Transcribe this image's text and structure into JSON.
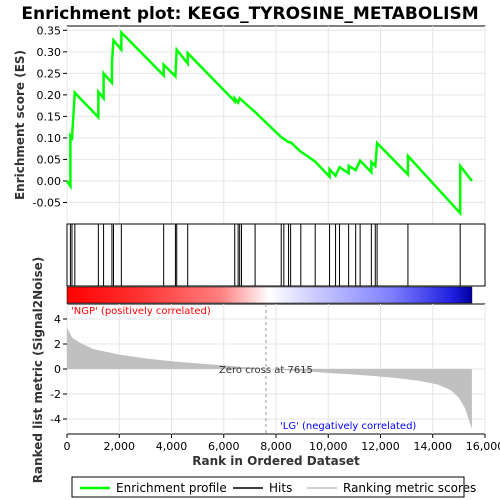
{
  "chart_data": {
    "type": "line",
    "title": "Enrichment plot: KEGG_TYROSINE_METABOLISM",
    "xlabel": "Rank in Ordered Dataset",
    "ylabel_top": "Enrichment score (ES)",
    "ylabel_bottom": "Ranked list metric (Signal2Noise)",
    "xlim": [
      0,
      16000
    ],
    "ylim_top": [
      -0.1,
      0.36
    ],
    "ylim_bottom": [
      -5.2,
      5.2
    ],
    "x_ticks": [
      0,
      2000,
      4000,
      6000,
      8000,
      10000,
      12000,
      14000,
      16000
    ],
    "x_tick_labels": [
      "0",
      "2,000",
      "4,000",
      "6,000",
      "8,000",
      "10,000",
      "12,000",
      "14,000",
      "16,000"
    ],
    "y_ticks_top": [
      -0.05,
      0.0,
      0.05,
      0.1,
      0.15,
      0.2,
      0.25,
      0.3,
      0.35
    ],
    "y_tick_labels_top": [
      "-0.05",
      "0.00",
      "0.05",
      "0.10",
      "0.15",
      "0.20",
      "0.25",
      "0.30",
      "0.35"
    ],
    "y_ticks_bottom": [
      -4,
      -2,
      0,
      2,
      4
    ],
    "y_tick_labels_bottom": [
      "-4",
      "-2",
      "0",
      "2",
      "4"
    ],
    "grid": true,
    "n_genes": 15500,
    "hits": [
      130,
      190,
      300,
      1200,
      1400,
      1720,
      1780,
      2080,
      3700,
      4150,
      4200,
      4620,
      6420,
      6550,
      6610,
      6680,
      7200,
      8200,
      8300,
      8480,
      8560,
      8950,
      9500,
      10050,
      10280,
      10430,
      10780,
      11050,
      11220,
      11650,
      11800,
      11870,
      13050,
      15050
    ],
    "es_points": [
      [
        0,
        0.0
      ],
      [
        130,
        -0.012
      ],
      [
        131,
        0.105
      ],
      [
        190,
        0.1
      ],
      [
        300,
        0.205
      ],
      [
        1200,
        0.148
      ],
      [
        1201,
        0.207
      ],
      [
        1400,
        0.192
      ],
      [
        1401,
        0.25
      ],
      [
        1720,
        0.228
      ],
      [
        1721,
        0.278
      ],
      [
        1780,
        0.327
      ],
      [
        2080,
        0.305
      ],
      [
        2081,
        0.345
      ],
      [
        3700,
        0.245
      ],
      [
        3701,
        0.27
      ],
      [
        4150,
        0.243
      ],
      [
        4200,
        0.305
      ],
      [
        4620,
        0.273
      ],
      [
        4621,
        0.297
      ],
      [
        6420,
        0.185
      ],
      [
        6421,
        0.192
      ],
      [
        6550,
        0.182
      ],
      [
        6610,
        0.192
      ],
      [
        6680,
        0.188
      ],
      [
        7200,
        0.16
      ],
      [
        8200,
        0.102
      ],
      [
        8300,
        0.098
      ],
      [
        8480,
        0.09
      ],
      [
        8560,
        0.09
      ],
      [
        8950,
        0.068
      ],
      [
        9500,
        0.045
      ],
      [
        10050,
        0.01
      ],
      [
        10051,
        0.027
      ],
      [
        10280,
        0.012
      ],
      [
        10430,
        0.032
      ],
      [
        10780,
        0.018
      ],
      [
        10781,
        0.035
      ],
      [
        11050,
        0.025
      ],
      [
        11220,
        0.047
      ],
      [
        11650,
        0.02
      ],
      [
        11651,
        0.044
      ],
      [
        11800,
        0.035
      ],
      [
        11870,
        0.088
      ],
      [
        13050,
        0.015
      ],
      [
        13051,
        0.058
      ],
      [
        15050,
        -0.075
      ],
      [
        15051,
        0.035
      ],
      [
        15500,
        0.0
      ]
    ],
    "metric_points": [
      [
        0,
        3.3
      ],
      [
        200,
        2.5
      ],
      [
        500,
        2.1
      ],
      [
        1000,
        1.6
      ],
      [
        2000,
        1.15
      ],
      [
        3000,
        0.85
      ],
      [
        4000,
        0.62
      ],
      [
        5000,
        0.45
      ],
      [
        6000,
        0.28
      ],
      [
        7000,
        0.12
      ],
      [
        7615,
        0.0
      ],
      [
        8500,
        -0.12
      ],
      [
        9500,
        -0.25
      ],
      [
        10500,
        -0.38
      ],
      [
        11500,
        -0.52
      ],
      [
        12500,
        -0.7
      ],
      [
        13500,
        -0.95
      ],
      [
        14200,
        -1.25
      ],
      [
        14700,
        -1.7
      ],
      [
        15000,
        -2.3
      ],
      [
        15250,
        -3.2
      ],
      [
        15400,
        -4.2
      ],
      [
        15500,
        -4.8
      ]
    ],
    "zero_cross": 7615,
    "zero_cross_label": "Zero cross at 7615",
    "pos_label": "'NGP' (positively correlated)",
    "neg_label": "'LG' (negatively correlated)",
    "colors": {
      "es_line": "#00ff00",
      "hits": "#000000",
      "metric_fill": "#c0c0c0",
      "pos_label": "#ff0000",
      "neg_label": "#0000ff",
      "grid": "#e6e6e6"
    },
    "legend": [
      {
        "label": "Enrichment profile",
        "style": "line-green"
      },
      {
        "label": "Hits",
        "style": "line-black"
      },
      {
        "label": "Ranking metric scores",
        "style": "line-gray"
      }
    ],
    "legend_placement": "bottom"
  }
}
